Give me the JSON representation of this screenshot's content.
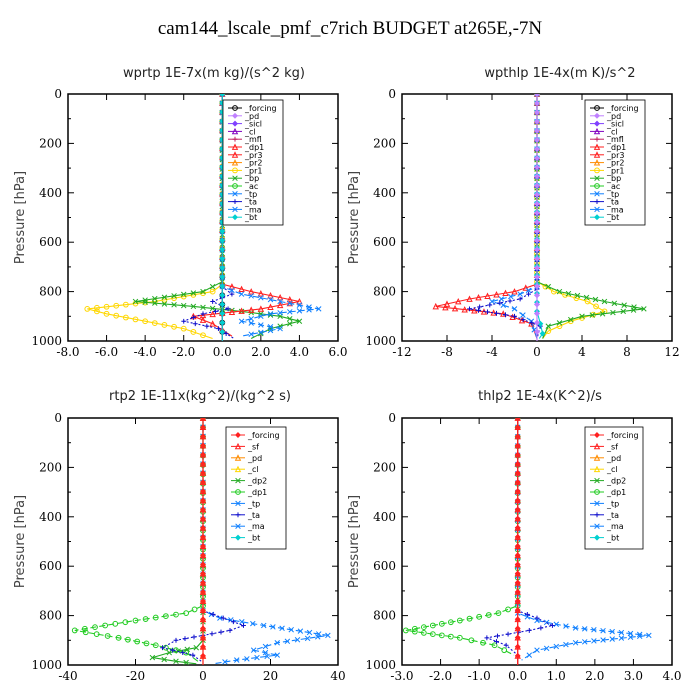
{
  "title": "cam144_lscale_pmf_c7rich  BUDGET at265E,-7N",
  "chart_data": [
    {
      "type": "line",
      "title": "wprtp   1E-7x(m kg)/(s^2 kg)",
      "ylabel": "Pressure [hPa]",
      "xlim": [
        -8,
        6
      ],
      "ylim": [
        1000,
        0
      ],
      "xticks": [
        "-8.0",
        "-6.0",
        "-4.0",
        "-2.0",
        "0.0",
        "2.0",
        "4.0",
        "6.0"
      ],
      "xtick_values": [
        -8,
        -6,
        -4,
        -2,
        0,
        2,
        4,
        6
      ],
      "yticks": [
        "0",
        "200",
        "400",
        "600",
        "800",
        "1000"
      ],
      "legend": [
        "_forcing",
        "_pd",
        "_sicl",
        "_cl",
        "_mfl",
        "_dp1",
        "_pr3",
        "_pr2",
        "_pr1",
        "_bp",
        "_ac",
        "_tp",
        "_ta",
        "_ma",
        "_bt"
      ],
      "series": [
        {
          "name": "_forcing",
          "color": "#000000",
          "marker": "circle",
          "dash": "",
          "x": [
            0,
            0
          ],
          "y": [
            0,
            1000
          ]
        },
        {
          "name": "_pd",
          "color": "#c080ff",
          "marker": "diamond",
          "dash": "",
          "x": [
            0,
            0
          ],
          "y": [
            0,
            1000
          ]
        },
        {
          "name": "_pr1",
          "color": "#ffd700",
          "marker": "circle",
          "dash": "",
          "x": [
            0,
            0,
            -0.5,
            -3.5,
            -7.0,
            -6.0,
            -4.0,
            -2.0,
            -0.5
          ],
          "y": [
            0,
            770,
            800,
            840,
            870,
            890,
            920,
            950,
            990
          ]
        },
        {
          "name": "_bp",
          "color": "#22aa22",
          "marker": "x",
          "dash": "",
          "x": [
            0,
            0,
            -1.0,
            -4.5,
            -1.5,
            1.0,
            3.0,
            4.0,
            2.5,
            1.5
          ],
          "y": [
            0,
            760,
            800,
            840,
            860,
            880,
            900,
            920,
            950,
            990
          ]
        },
        {
          "name": "_dp1",
          "color": "#ff2020",
          "marker": "triangle",
          "dash": "",
          "x": [
            0,
            0,
            1.5,
            4.0,
            2.0,
            -1.5,
            -0.5,
            0.5
          ],
          "y": [
            0,
            770,
            800,
            840,
            870,
            900,
            930,
            980
          ]
        },
        {
          "name": "_tp",
          "color": "#1080ff",
          "marker": "x",
          "dash": "6,3",
          "x": [
            0,
            0,
            1.0,
            3.0,
            5.0,
            2.5,
            1.0,
            3.0,
            1.0
          ],
          "y": [
            0,
            780,
            810,
            840,
            870,
            890,
            920,
            950,
            980
          ]
        },
        {
          "name": "_ta",
          "color": "#1010cc",
          "marker": "plus",
          "dash": "2,2",
          "x": [
            0,
            0,
            0.5,
            -0.5,
            0.3,
            -1.0,
            -2.0,
            -0.2,
            0.6
          ],
          "y": [
            0,
            780,
            810,
            840,
            870,
            890,
            920,
            950,
            990
          ]
        },
        {
          "name": "_mfl",
          "color": "#c02060",
          "marker": "plus",
          "dash": "",
          "x": [
            0,
            0
          ],
          "y": [
            0,
            1000
          ]
        },
        {
          "name": "_bt",
          "color": "#00d0d0",
          "marker": "diamond",
          "dash": "",
          "x": [
            0,
            0
          ],
          "y": [
            0,
            1000
          ]
        }
      ]
    },
    {
      "type": "line",
      "title": "wpthlp   1E-4x(m K)/s^2",
      "ylabel": "Pressure [hPa]",
      "xlim": [
        -12,
        12
      ],
      "ylim": [
        1000,
        0
      ],
      "xticks": [
        "-12",
        "-8",
        "-4",
        "0",
        "4",
        "8",
        "12"
      ],
      "xtick_values": [
        -12,
        -8,
        -4,
        0,
        4,
        8,
        12
      ],
      "yticks": [
        "0",
        "200",
        "400",
        "600",
        "800",
        "1000"
      ],
      "legend": [
        "_forcing",
        "_pd",
        "_sicl",
        "_cl",
        "_mfl",
        "_dp1",
        "_pr3",
        "_pr2",
        "_pr1",
        "_bp",
        "_ac",
        "_tp",
        "_ta",
        "_ma",
        "_bt"
      ],
      "series": [
        {
          "name": "_pd",
          "color": "#c080ff",
          "marker": "diamond",
          "dash": "",
          "x": [
            0,
            0
          ],
          "y": [
            0,
            1000
          ]
        },
        {
          "name": "_pr1",
          "color": "#ffd700",
          "marker": "circle",
          "dash": "",
          "x": [
            0,
            0,
            1.5,
            4.5,
            6.0,
            3.0,
            1.0,
            0.5
          ],
          "y": [
            0,
            760,
            800,
            840,
            880,
            920,
            960,
            990
          ]
        },
        {
          "name": "_bp",
          "color": "#22aa22",
          "marker": "x",
          "dash": "",
          "x": [
            0,
            0,
            2.0,
            6.0,
            9.5,
            4.0,
            1.0,
            0.5
          ],
          "y": [
            0,
            760,
            800,
            840,
            870,
            900,
            940,
            990
          ]
        },
        {
          "name": "_dp1",
          "color": "#ff2020",
          "marker": "triangle",
          "dash": "",
          "x": [
            0,
            0,
            -2.0,
            -6.0,
            -9.0,
            -3.0,
            -0.5,
            0
          ],
          "y": [
            0,
            770,
            800,
            830,
            860,
            890,
            930,
            990
          ]
        },
        {
          "name": "_tp",
          "color": "#1080ff",
          "marker": "x",
          "dash": "6,3",
          "x": [
            0,
            0,
            -1.5,
            -4.0,
            -2.0,
            -0.5,
            0
          ],
          "y": [
            0,
            780,
            810,
            840,
            870,
            920,
            990
          ]
        },
        {
          "name": "_ta",
          "color": "#1010cc",
          "marker": "plus",
          "dash": "2,2",
          "x": [
            0,
            0,
            -1.5,
            -6.0,
            -2.0,
            0.3,
            0
          ],
          "y": [
            0,
            790,
            830,
            870,
            900,
            940,
            990
          ]
        },
        {
          "name": "_bt",
          "color": "#00d0d0",
          "marker": "diamond",
          "dash": "",
          "x": [
            0,
            0,
            0.3,
            0.5,
            0.2
          ],
          "y": [
            0,
            880,
            930,
            970,
            990
          ]
        },
        {
          "name": "_forcing",
          "color": "#c080ff",
          "marker": "diamond",
          "dash": "",
          "x": [
            0,
            0
          ],
          "y": [
            0,
            1000
          ]
        }
      ]
    },
    {
      "type": "line",
      "title": "rtp2   1E-11x(kg^2)/(kg^2 s)",
      "ylabel": "Pressure [hPa]",
      "xlim": [
        -40,
        40
      ],
      "ylim": [
        1000,
        0
      ],
      "xticks": [
        "-40",
        "-20",
        "0",
        "20",
        "40"
      ],
      "xtick_values": [
        -40,
        -20,
        0,
        20,
        40
      ],
      "yticks": [
        "0",
        "200",
        "400",
        "600",
        "800",
        "1000"
      ],
      "legend": [
        "_forcing",
        "_sf",
        "_pd",
        "_cl",
        "_dp2",
        "_dp1",
        "_tp",
        "_ta",
        "_ma",
        "_bt"
      ],
      "series": [
        {
          "name": "_dp1",
          "color": "#22cc22",
          "marker": "circle",
          "dash": "6,3",
          "x": [
            0,
            0,
            -5.0,
            -20.0,
            -38.0,
            -25.0,
            -14.0,
            -5.0,
            -1.0
          ],
          "y": [
            0,
            760,
            790,
            820,
            860,
            890,
            920,
            950,
            990
          ]
        },
        {
          "name": "_dp2",
          "color": "#22aa22",
          "marker": "x",
          "dash": "",
          "x": [
            0,
            0,
            -2.0,
            -10.0,
            -15.0,
            -8.0,
            -2.0
          ],
          "y": [
            0,
            900,
            930,
            950,
            970,
            985,
            995
          ]
        },
        {
          "name": "_tp",
          "color": "#1080ff",
          "marker": "x",
          "dash": "6,3",
          "x": [
            0,
            0,
            5.0,
            18.0,
            37.0,
            22.0,
            15.0,
            22.0,
            10.0,
            3.0
          ],
          "y": [
            0,
            780,
            810,
            840,
            880,
            910,
            940,
            960,
            980,
            995
          ]
        },
        {
          "name": "_ta",
          "color": "#1010cc",
          "marker": "plus",
          "dash": "2,2",
          "x": [
            0,
            0,
            6.0,
            12.0,
            8.0,
            0,
            -8.0,
            -12.0,
            -3.0,
            0
          ],
          "y": [
            0,
            780,
            810,
            840,
            860,
            880,
            900,
            930,
            960,
            990
          ]
        },
        {
          "name": "_forcing",
          "color": "#ff2020",
          "marker": "diamond",
          "dash": "",
          "x": [
            0,
            0
          ],
          "y": [
            0,
            1000
          ]
        },
        {
          "name": "_pd",
          "color": "#ff8c00",
          "marker": "triangle",
          "dash": "",
          "x": [
            0,
            0
          ],
          "y": [
            0,
            1000
          ]
        },
        {
          "name": "_sf",
          "color": "#ff2020",
          "marker": "triangle",
          "dash": "",
          "x": [
            0,
            0
          ],
          "y": [
            0,
            1000
          ]
        }
      ]
    },
    {
      "type": "line",
      "title": "thlp2   1E-4x(K^2)/s",
      "ylabel": "Pressure [hPa]",
      "xlim": [
        -3,
        4
      ],
      "ylim": [
        1000,
        0
      ],
      "xticks": [
        "-3.0",
        "-2.0",
        "-1.0",
        "0.0",
        "1.0",
        "2.0",
        "3.0",
        "4.0"
      ],
      "xtick_values": [
        -3,
        -2,
        -1,
        0,
        1,
        2,
        3,
        4
      ],
      "yticks": [
        "0",
        "200",
        "400",
        "600",
        "800",
        "1000"
      ],
      "legend": [
        "_forcing",
        "_sf",
        "_pd",
        "_cl",
        "_dp2",
        "_dp1",
        "_tp",
        "_ta",
        "_ma",
        "_bt"
      ],
      "series": [
        {
          "name": "_dp1",
          "color": "#22cc22",
          "marker": "circle",
          "dash": "6,3",
          "x": [
            0,
            0,
            -0.5,
            -1.5,
            -2.9,
            -1.5,
            -0.6,
            -0.1
          ],
          "y": [
            0,
            760,
            790,
            820,
            860,
            890,
            920,
            960
          ]
        },
        {
          "name": "_tp",
          "color": "#1080ff",
          "marker": "x",
          "dash": "6,3",
          "x": [
            0,
            0,
            0.5,
            1.5,
            3.4,
            1.5,
            0.5,
            0.1
          ],
          "y": [
            0,
            790,
            820,
            850,
            880,
            910,
            940,
            980
          ]
        },
        {
          "name": "_ta",
          "color": "#1010cc",
          "marker": "plus",
          "dash": "2,2",
          "x": [
            0,
            0,
            0.5,
            0.9,
            0.3,
            -0.8,
            -0.3,
            0
          ],
          "y": [
            0,
            780,
            810,
            840,
            860,
            890,
            920,
            960
          ]
        },
        {
          "name": "_forcing",
          "color": "#ff2020",
          "marker": "diamond",
          "dash": "",
          "x": [
            0,
            0
          ],
          "y": [
            0,
            1000
          ]
        },
        {
          "name": "_sf",
          "color": "#ff2020",
          "marker": "triangle",
          "dash": "",
          "x": [
            0,
            0
          ],
          "y": [
            0,
            1000
          ]
        }
      ]
    }
  ]
}
